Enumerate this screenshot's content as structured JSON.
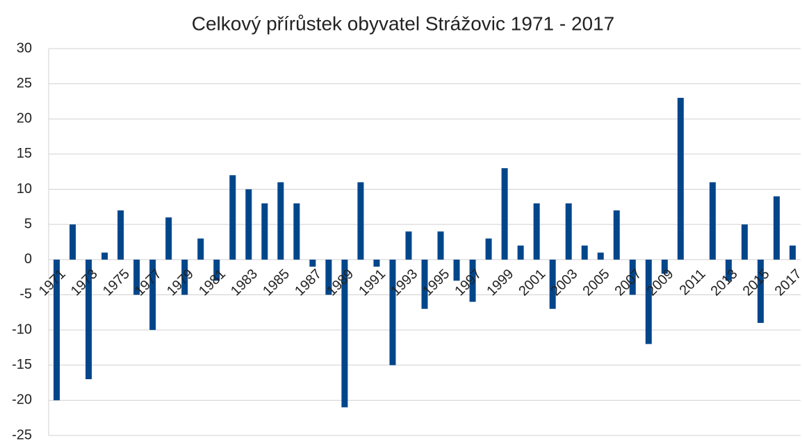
{
  "chart_data": {
    "type": "bar",
    "title": "Celkový přírůstek obyvatel Strážovic 1971 - 2017",
    "categories": [
      "1971",
      null,
      "1973",
      null,
      "1975",
      null,
      "1977",
      null,
      "1979",
      null,
      "1981",
      null,
      "1983",
      null,
      "1985",
      null,
      "1987",
      null,
      "1989",
      null,
      "1991",
      null,
      "1993",
      null,
      "1995",
      null,
      "1997",
      null,
      "1999",
      null,
      "2001",
      null,
      "2003",
      null,
      "2005",
      null,
      "2007",
      null,
      "2009",
      null,
      "2011",
      null,
      "2013",
      null,
      "2015",
      null,
      "2017"
    ],
    "values": [
      -20,
      5,
      -17,
      1,
      7,
      -5,
      -10,
      6,
      -5,
      3,
      -3,
      12,
      10,
      8,
      11,
      8,
      -1,
      -5,
      -21,
      11,
      -1,
      -15,
      4,
      -7,
      4,
      -3,
      -6,
      3,
      13,
      2,
      8,
      -7,
      8,
      2,
      1,
      7,
      -5,
      -12,
      -2,
      23,
      0,
      11,
      -3,
      5,
      -9,
      9,
      2
    ],
    "color": "#00468b",
    "ylim": [
      -25,
      30
    ],
    "yticks": [
      -25,
      -20,
      -15,
      -10,
      -5,
      0,
      5,
      10,
      15,
      20,
      25,
      30
    ],
    "grid": true
  }
}
